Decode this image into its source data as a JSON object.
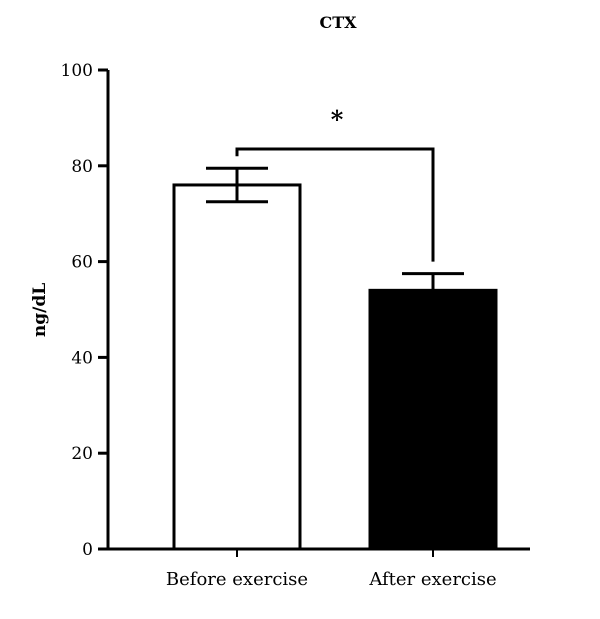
{
  "chart_data": {
    "type": "bar",
    "title": "CTX",
    "ylabel": "ng/dL",
    "xlabel": "",
    "categories": [
      "Before exercise",
      "After exercise"
    ],
    "values": [
      76,
      54
    ],
    "errors": [
      3.5,
      3.5
    ],
    "bar_colors": [
      "#ffffff",
      "#000000"
    ],
    "ylim": [
      0,
      100
    ],
    "yticks": [
      0,
      20,
      40,
      60,
      80,
      100
    ],
    "significance": {
      "between": [
        0,
        1
      ],
      "label": "*"
    },
    "grid": false
  }
}
